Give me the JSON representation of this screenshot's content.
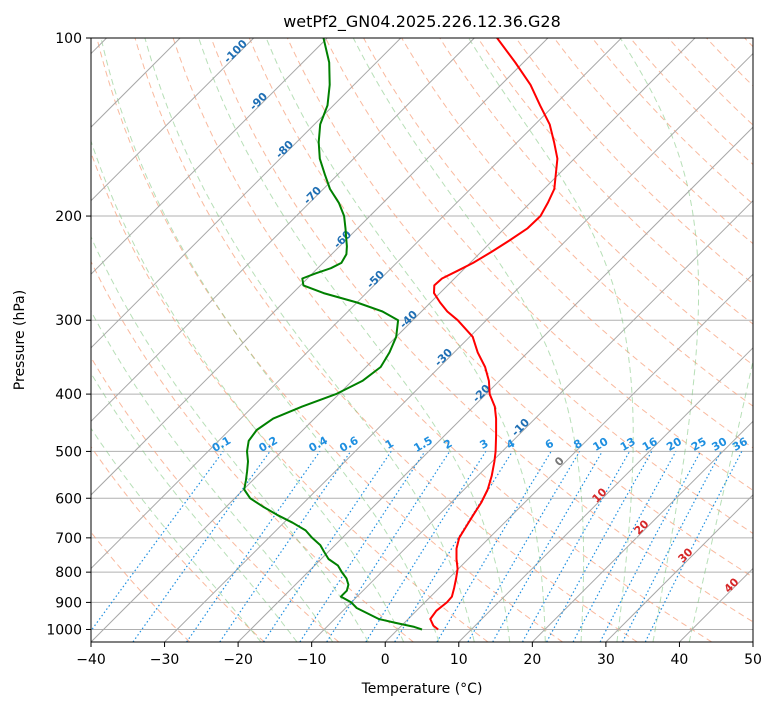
{
  "chart_data": {
    "type": "line",
    "title": "wetPf2_GN04.2025.226.12.36.G28",
    "xlabel": "Temperature (°C)",
    "ylabel": "Pressure (hPa)",
    "xlim": [
      -40,
      50
    ],
    "ylim": [
      1050,
      100
    ],
    "y_scale": "log",
    "skew": "skew-T",
    "grid": true,
    "x_ticks": [
      -40,
      -30,
      -20,
      -10,
      0,
      10,
      20,
      30,
      40,
      50
    ],
    "y_ticks": [
      100,
      200,
      300,
      400,
      500,
      600,
      700,
      800,
      900,
      1000
    ],
    "isotherm_labels": [
      -100,
      -90,
      -80,
      -70,
      -60,
      -50,
      -40,
      -30,
      -20,
      -10,
      0,
      10,
      20,
      30,
      40
    ],
    "mixing_ratio_labels": [
      "0.1",
      "0.2",
      "0.4",
      "0.6",
      "1",
      "1.5",
      "2",
      "3",
      "4",
      "6",
      "8",
      "10",
      "13",
      "16",
      "20",
      "25",
      "30",
      "36"
    ],
    "series": [
      {
        "color": "#ff0000",
        "p": [
          1000,
          985,
          960,
          930,
          900,
          880,
          850,
          820,
          790,
          760,
          730,
          700,
          670,
          640,
          610,
          580,
          550,
          520,
          500,
          470,
          440,
          420,
          400,
          380,
          360,
          340,
          320,
          300,
          290,
          280,
          270,
          262,
          255,
          248,
          240,
          230,
          220,
          210,
          200,
          190,
          180,
          170,
          160,
          150,
          140,
          130,
          120,
          110,
          100
        ],
        "t": [
          5.5,
          4.3,
          3.0,
          2.7,
          3.0,
          2.9,
          2.0,
          1.0,
          -0.1,
          -1.6,
          -3.0,
          -4.1,
          -4.7,
          -5.3,
          -5.9,
          -6.8,
          -8.1,
          -9.7,
          -10.9,
          -13.0,
          -15.3,
          -17.1,
          -19.5,
          -21.4,
          -23.8,
          -26.8,
          -29.6,
          -33.9,
          -36.5,
          -38.7,
          -40.8,
          -41.8,
          -41.7,
          -40.7,
          -39.6,
          -38.6,
          -37.7,
          -36.9,
          -36.8,
          -37.6,
          -38.6,
          -40.4,
          -42.3,
          -45.0,
          -48.0,
          -51.9,
          -56.0,
          -61.1,
          -66.9
        ]
      },
      {
        "color": "#008000",
        "p": [
          1000,
          990,
          975,
          960,
          940,
          920,
          900,
          880,
          860,
          840,
          820,
          800,
          780,
          760,
          740,
          720,
          700,
          680,
          660,
          640,
          620,
          600,
          580,
          560,
          540,
          520,
          500,
          480,
          460,
          440,
          420,
          400,
          380,
          360,
          340,
          320,
          300,
          290,
          280,
          270,
          262,
          255,
          250,
          245,
          240,
          232,
          225,
          218,
          210,
          200,
          190,
          180,
          170,
          160,
          150,
          140,
          130,
          120,
          110,
          100
        ],
        "t": [
          3.3,
          1.9,
          -1.1,
          -4.0,
          -6.2,
          -8.5,
          -10.0,
          -12.2,
          -12.2,
          -12.8,
          -13.9,
          -15.4,
          -16.8,
          -19.0,
          -20.5,
          -22.0,
          -24.1,
          -26.0,
          -28.8,
          -32.0,
          -35.0,
          -37.9,
          -39.9,
          -40.9,
          -42.0,
          -43.2,
          -44.7,
          -45.9,
          -46.3,
          -45.6,
          -43.3,
          -40.4,
          -38.6,
          -38.0,
          -38.8,
          -40.0,
          -42.0,
          -45.3,
          -50.0,
          -55.8,
          -59.6,
          -60.7,
          -59.6,
          -58.2,
          -57.5,
          -58.0,
          -59.0,
          -60.2,
          -61.6,
          -63.5,
          -66.0,
          -69.1,
          -71.8,
          -74.6,
          -77.0,
          -79.2,
          -80.8,
          -83.3,
          -86.4,
          -90.5
        ]
      }
    ]
  }
}
